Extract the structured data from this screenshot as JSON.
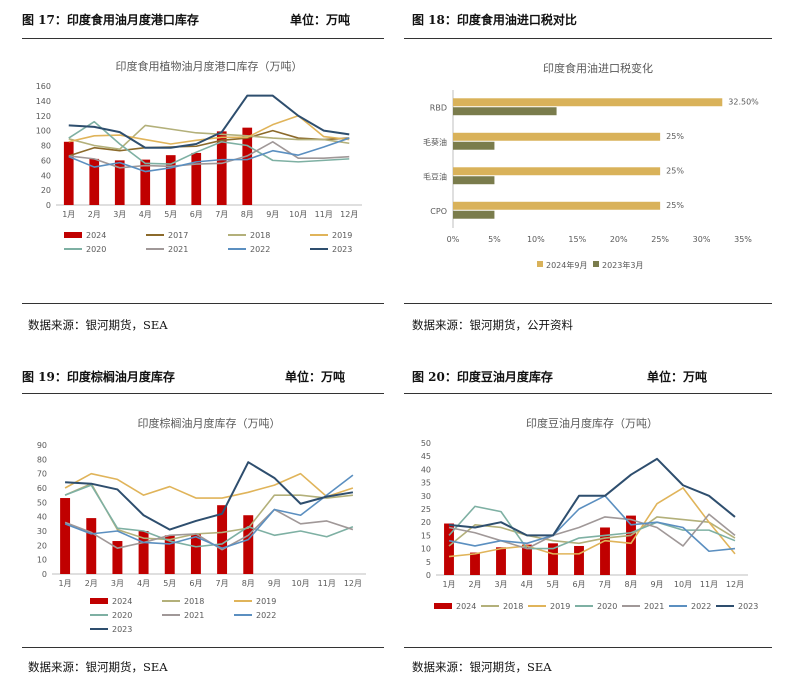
{
  "panels": [
    {
      "fig_title": "图 17：印度食用油月度港口库存",
      "unit": "单位：万吨",
      "source": "数据来源：银河期货，SEA"
    },
    {
      "fig_title": "图 18：印度食用油进口税对比",
      "unit": "",
      "source": "数据来源：银河期货，公开资料"
    },
    {
      "fig_title": "图 19：印度棕榈油月度库存",
      "unit": "单位：万吨",
      "source": "数据来源：银河期货，SEA"
    },
    {
      "fig_title": "图 20：印度豆油月度库存",
      "unit": "单位：万吨",
      "source": "数据来源：银河期货，SEA"
    }
  ],
  "colors": {
    "2024": "#c00000",
    "2017": "#8b6a2b",
    "2018": "#b3b07a",
    "2019": "#e0b45a",
    "2020": "#7eb0a3",
    "2021": "#a09898",
    "2022": "#5b8fc0",
    "2023": "#2e4e6e",
    "tax2024": "#d9b25a",
    "tax2023": "#7a7c4c",
    "axis": "#bfbfbf",
    "text": "#595959"
  },
  "chart_data": [
    {
      "type": "bar+line",
      "title": "印度食用植物油月度港口库存（万吨）",
      "categories": [
        "1月",
        "2月",
        "3月",
        "4月",
        "5月",
        "6月",
        "7月",
        "8月",
        "9月",
        "10月",
        "11月",
        "12月"
      ],
      "ylim": [
        0,
        160
      ],
      "yticks": [
        0,
        20,
        40,
        60,
        80,
        100,
        120,
        140,
        160
      ],
      "bar_series": {
        "name": "2024",
        "values": [
          85,
          62,
          60,
          61,
          67,
          70,
          99,
          104
        ]
      },
      "series": [
        {
          "name": "2017",
          "values": [
            66,
            77,
            73,
            77,
            78,
            79,
            87,
            90,
            100,
            90,
            88,
            90
          ]
        },
        {
          "name": "2018",
          "values": [
            89,
            80,
            75,
            107,
            102,
            97,
            95,
            93,
            90,
            88,
            88,
            83
          ]
        },
        {
          "name": "2019",
          "values": [
            85,
            93,
            94,
            88,
            82,
            87,
            91,
            91,
            108,
            120,
            92,
            88
          ]
        },
        {
          "name": "2020",
          "values": [
            90,
            112,
            82,
            56,
            55,
            71,
            85,
            80,
            60,
            58,
            60,
            62
          ]
        },
        {
          "name": "2021",
          "values": [
            66,
            62,
            50,
            53,
            52,
            55,
            56,
            66,
            85,
            63,
            63,
            65
          ]
        },
        {
          "name": "2022",
          "values": [
            65,
            51,
            57,
            45,
            50,
            58,
            61,
            61,
            73,
            67,
            78,
            90
          ]
        },
        {
          "name": "2023",
          "values": [
            107,
            105,
            98,
            77,
            77,
            82,
            98,
            147,
            147,
            120,
            100,
            95
          ]
        }
      ]
    },
    {
      "type": "hbar",
      "title": "印度食用油进口税变化",
      "categories": [
        "RBD",
        "毛葵油",
        "毛豆油",
        "CPO"
      ],
      "xlim": [
        0,
        35
      ],
      "xticks": [
        "0%",
        "5%",
        "10%",
        "15%",
        "20%",
        "25%",
        "30%",
        "35%"
      ],
      "series": [
        {
          "name": "2024年9月",
          "values": [
            32.5,
            25,
            25,
            25
          ],
          "labels": [
            "32.50%",
            "25%",
            "25%",
            "25%"
          ]
        },
        {
          "name": "2023年3月",
          "values": [
            12.5,
            5,
            5,
            5
          ]
        }
      ]
    },
    {
      "type": "bar+line",
      "title": "印度棕榈油月度库存（万吨）",
      "categories": [
        "1月",
        "2月",
        "3月",
        "4月",
        "5月",
        "6月",
        "7月",
        "8月",
        "9月",
        "10月",
        "11月",
        "12月"
      ],
      "ylim": [
        0,
        90
      ],
      "yticks": [
        0,
        10,
        20,
        30,
        40,
        50,
        60,
        70,
        80,
        90
      ],
      "bar_series": {
        "name": "2024",
        "values": [
          53,
          39,
          23,
          30,
          27,
          28,
          48,
          41
        ]
      },
      "series": [
        {
          "name": "2018",
          "values": [
            55,
            63,
            31,
            25,
            24,
            28,
            29,
            32,
            55,
            55,
            53,
            55
          ]
        },
        {
          "name": "2019",
          "values": [
            60,
            70,
            66,
            55,
            61,
            53,
            53,
            57,
            62,
            70,
            54,
            60
          ]
        },
        {
          "name": "2020",
          "values": [
            55,
            62,
            32,
            30,
            23,
            19,
            21,
            33,
            27,
            30,
            26,
            33
          ]
        },
        {
          "name": "2021",
          "values": [
            36,
            29,
            18,
            22,
            27,
            28,
            17,
            27,
            45,
            35,
            37,
            31
          ]
        },
        {
          "name": "2022",
          "values": [
            35,
            28,
            30,
            22,
            21,
            26,
            18,
            24,
            45,
            41,
            55,
            69
          ]
        },
        {
          "name": "2023",
          "values": [
            64,
            63,
            59,
            41,
            31,
            37,
            42,
            78,
            67,
            49,
            54,
            57
          ]
        }
      ]
    },
    {
      "type": "bar+line",
      "title": "印度豆油月度库存（万吨）",
      "categories": [
        "1月",
        "2月",
        "3月",
        "4月",
        "5月",
        "6月",
        "7月",
        "8月",
        "9月",
        "10月",
        "11月",
        "12月"
      ],
      "ylim": [
        0,
        50
      ],
      "yticks": [
        0,
        5,
        10,
        15,
        20,
        25,
        30,
        35,
        40,
        45,
        50
      ],
      "bar_series": {
        "name": "2024",
        "values": [
          19.5,
          8.5,
          10.5,
          11.5,
          12,
          11,
          18,
          22.5
        ]
      },
      "series": [
        {
          "name": "2018",
          "values": [
            11,
            19,
            18,
            15,
            13,
            12,
            14,
            15,
            22,
            21,
            20,
            14
          ]
        },
        {
          "name": "2019",
          "values": [
            7,
            8,
            10,
            11,
            8,
            8,
            13,
            12,
            27,
            33,
            20,
            8
          ]
        },
        {
          "name": "2020",
          "values": [
            15,
            26,
            24,
            10,
            10,
            14,
            15,
            16,
            20,
            17,
            17,
            13
          ]
        },
        {
          "name": "2021",
          "values": [
            18,
            16,
            13,
            10,
            15,
            18,
            22,
            21,
            18,
            11,
            23,
            15
          ]
        },
        {
          "name": "2022",
          "values": [
            13,
            11,
            13,
            12,
            15,
            25,
            30,
            19,
            20,
            18,
            9,
            10
          ]
        },
        {
          "name": "2023",
          "values": [
            19,
            18,
            20,
            15,
            15,
            30,
            30,
            38,
            44,
            34,
            30,
            22
          ]
        }
      ]
    }
  ]
}
